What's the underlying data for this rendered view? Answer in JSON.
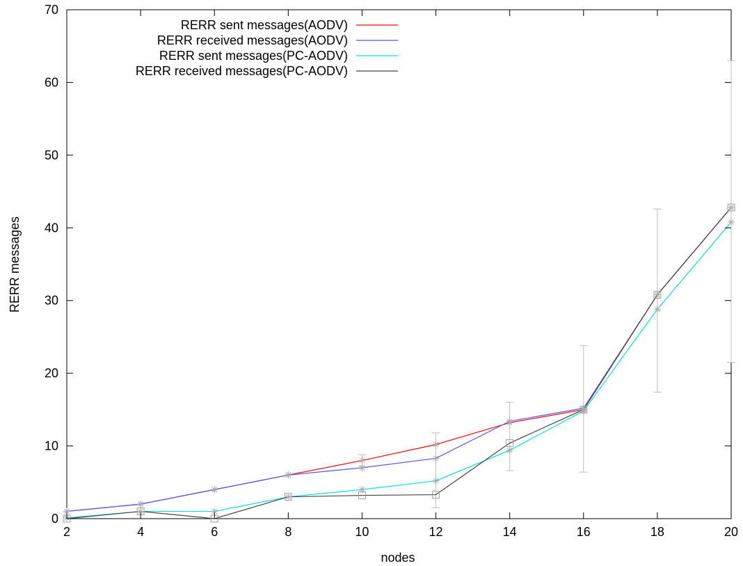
{
  "chart_data": {
    "type": "line",
    "title": "",
    "xlabel": "nodes",
    "ylabel": "RERR messages",
    "xlim": [
      2,
      20
    ],
    "ylim": [
      0,
      70
    ],
    "xticks": [
      2,
      4,
      6,
      8,
      10,
      12,
      14,
      16,
      18,
      20
    ],
    "yticks": [
      0,
      10,
      20,
      30,
      40,
      50,
      60,
      70
    ],
    "grid": false,
    "legend_position": "top-left",
    "x": [
      2,
      4,
      6,
      8,
      10,
      12,
      14,
      16,
      18,
      20
    ],
    "series": [
      {
        "name": "RERR sent messages(AODV)",
        "color": "#ff0000",
        "marker": "star",
        "values": [
          1,
          2,
          4,
          6,
          8,
          10.2,
          13.2,
          15,
          30.8,
          42.8
        ]
      },
      {
        "name": "RERR received messages(AODV)",
        "color": "#5555ff",
        "marker": "star",
        "values": [
          1,
          2,
          4,
          6,
          7,
          8.3,
          13.4,
          15.2,
          30.8,
          42.8
        ]
      },
      {
        "name": "RERR sent messages(PC-AODV)",
        "color": "#00e0e0",
        "marker": "star",
        "values": [
          0.1,
          1,
          1,
          3,
          4,
          5.2,
          9.4,
          14.8,
          28.8,
          40.8
        ]
      },
      {
        "name": "RERR received messages(PC-AODV)",
        "color": "#444444",
        "marker": "square",
        "values": [
          0,
          1,
          0,
          3,
          3.2,
          3.3,
          10.4,
          15,
          30.8,
          42.8
        ]
      }
    ],
    "error_bars": [
      {
        "x": 10,
        "low": 7.2,
        "high": 8.8
      },
      {
        "x": 12,
        "low": 1.5,
        "high": 11.8
      },
      {
        "x": 14,
        "low": 6.6,
        "high": 16.0
      },
      {
        "x": 16,
        "low": 6.4,
        "high": 23.8
      },
      {
        "x": 18,
        "low": 17.4,
        "high": 42.6
      },
      {
        "x": 20,
        "low": 21.5,
        "high": 63.0
      }
    ]
  }
}
